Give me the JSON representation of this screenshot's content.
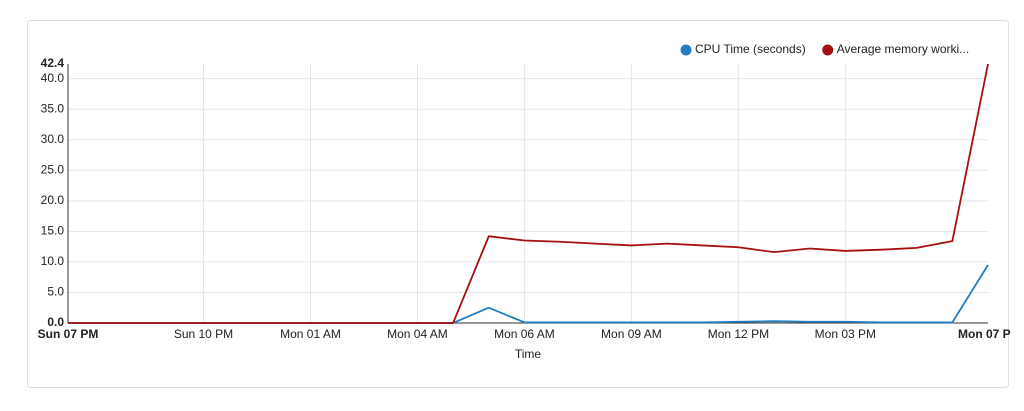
{
  "chart_data": {
    "type": "line",
    "x_label": "Time",
    "x": [
      0,
      10.8,
      11.8,
      12.8,
      13.8,
      14.8,
      15.8,
      16.8,
      17.8,
      18.8,
      19.8,
      20.8,
      21.8,
      22.8,
      23.8,
      24.8,
      25.8
    ],
    "series": [
      {
        "name": "CPU Time (seconds)",
        "color": "#1f7fc1",
        "values": [
          0,
          0,
          2.5,
          0.1,
          0.1,
          0.1,
          0.1,
          0.1,
          0.1,
          0.2,
          0.3,
          0.2,
          0.2,
          0.1,
          0.1,
          0.1,
          9.5
        ]
      },
      {
        "name": "Average memory worki...",
        "color": "#a50f0f",
        "values": [
          0,
          0,
          14.2,
          13.5,
          13.3,
          13.0,
          12.7,
          13.0,
          12.7,
          12.4,
          11.6,
          12.2,
          11.8,
          12.0,
          12.3,
          13.4,
          42.4
        ]
      }
    ],
    "xlim": [
      0,
      25.8
    ],
    "xticks": [
      {
        "value": 0,
        "label": "Sun 07 PM"
      },
      {
        "value": 3.8,
        "label": "Sun 10 PM"
      },
      {
        "value": 6.8,
        "label": "Mon 01 AM"
      },
      {
        "value": 9.8,
        "label": "Mon 04 AM"
      },
      {
        "value": 12.8,
        "label": "Mon 06 AM"
      },
      {
        "value": 15.8,
        "label": "Mon 09 AM"
      },
      {
        "value": 18.8,
        "label": "Mon 12 PM"
      },
      {
        "value": 21.8,
        "label": "Mon 03 PM"
      },
      {
        "value": 25.8,
        "label": "Mon 07 P"
      }
    ],
    "ylim": [
      0,
      42.4
    ],
    "yticks": [
      {
        "value": 0,
        "label": "0.0"
      },
      {
        "value": 5,
        "label": "5.0"
      },
      {
        "value": 10,
        "label": "10.0"
      },
      {
        "value": 15,
        "label": "15.0"
      },
      {
        "value": 20,
        "label": "20.0"
      },
      {
        "value": 25,
        "label": "25.0"
      },
      {
        "value": 30,
        "label": "30.0"
      },
      {
        "value": 35,
        "label": "35.0"
      },
      {
        "value": 40,
        "label": "40.0"
      },
      {
        "value": 42.4,
        "label": "42.4"
      }
    ],
    "grid": true,
    "legend": "top-right"
  }
}
